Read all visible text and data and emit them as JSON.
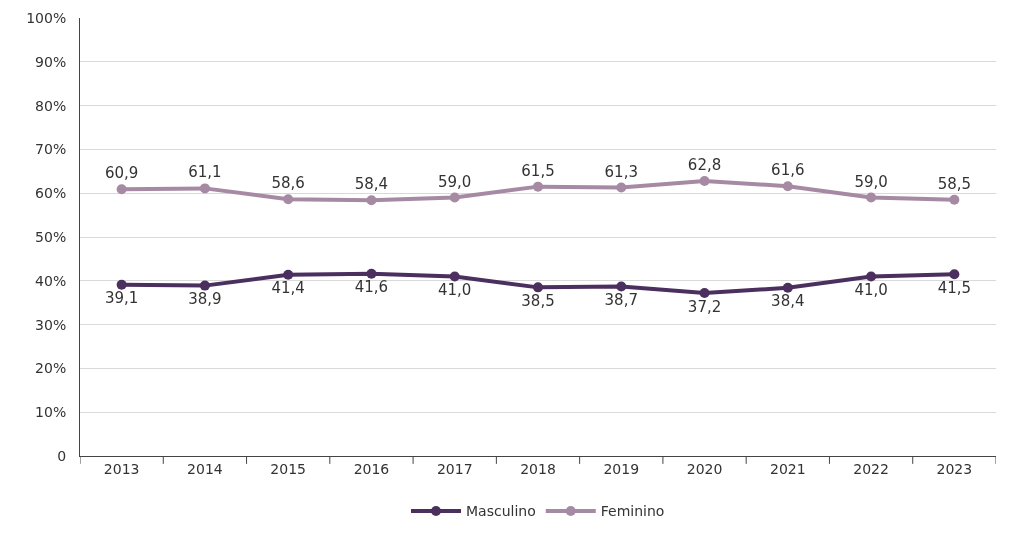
{
  "chart_data": {
    "type": "line",
    "categories": [
      "2013",
      "2014",
      "2015",
      "2016",
      "2017",
      "2018",
      "2019",
      "2020",
      "2021",
      "2022",
      "2023"
    ],
    "series": [
      {
        "name": "Masculino",
        "color": "#4b2f5e",
        "values": [
          39.1,
          38.9,
          41.4,
          41.6,
          41.0,
          38.5,
          38.7,
          37.2,
          38.4,
          41.0,
          41.5
        ],
        "value_labels": [
          "39,1",
          "38,9",
          "41,4",
          "41,6",
          "41,0",
          "38,5",
          "38,7",
          "37,2",
          "38,4",
          "41,0",
          "41,5"
        ]
      },
      {
        "name": "Feminino",
        "color": "#a68aa3",
        "values": [
          60.9,
          61.1,
          58.6,
          58.4,
          59.0,
          61.5,
          61.3,
          62.8,
          61.6,
          59.0,
          58.5
        ],
        "value_labels": [
          "60,9",
          "61,1",
          "58,6",
          "58,4",
          "59,0",
          "61,5",
          "61,3",
          "62,8",
          "61,6",
          "59,0",
          "58,5"
        ]
      }
    ],
    "ylim": [
      0,
      100
    ],
    "yticks": [
      {
        "value": 0,
        "label": "0"
      },
      {
        "value": 10,
        "label": "10%"
      },
      {
        "value": 20,
        "label": "20%"
      },
      {
        "value": 30,
        "label": "30%"
      },
      {
        "value": 40,
        "label": "40%"
      },
      {
        "value": 50,
        "label": "50%"
      },
      {
        "value": 60,
        "label": "60%"
      },
      {
        "value": 70,
        "label": "70%"
      },
      {
        "value": 80,
        "label": "80%"
      },
      {
        "value": 90,
        "label": "90%"
      },
      {
        "value": 100,
        "label": "100%"
      }
    ],
    "grid": "y",
    "legend": "bottom",
    "marker": "circle",
    "line_style": "solid"
  }
}
